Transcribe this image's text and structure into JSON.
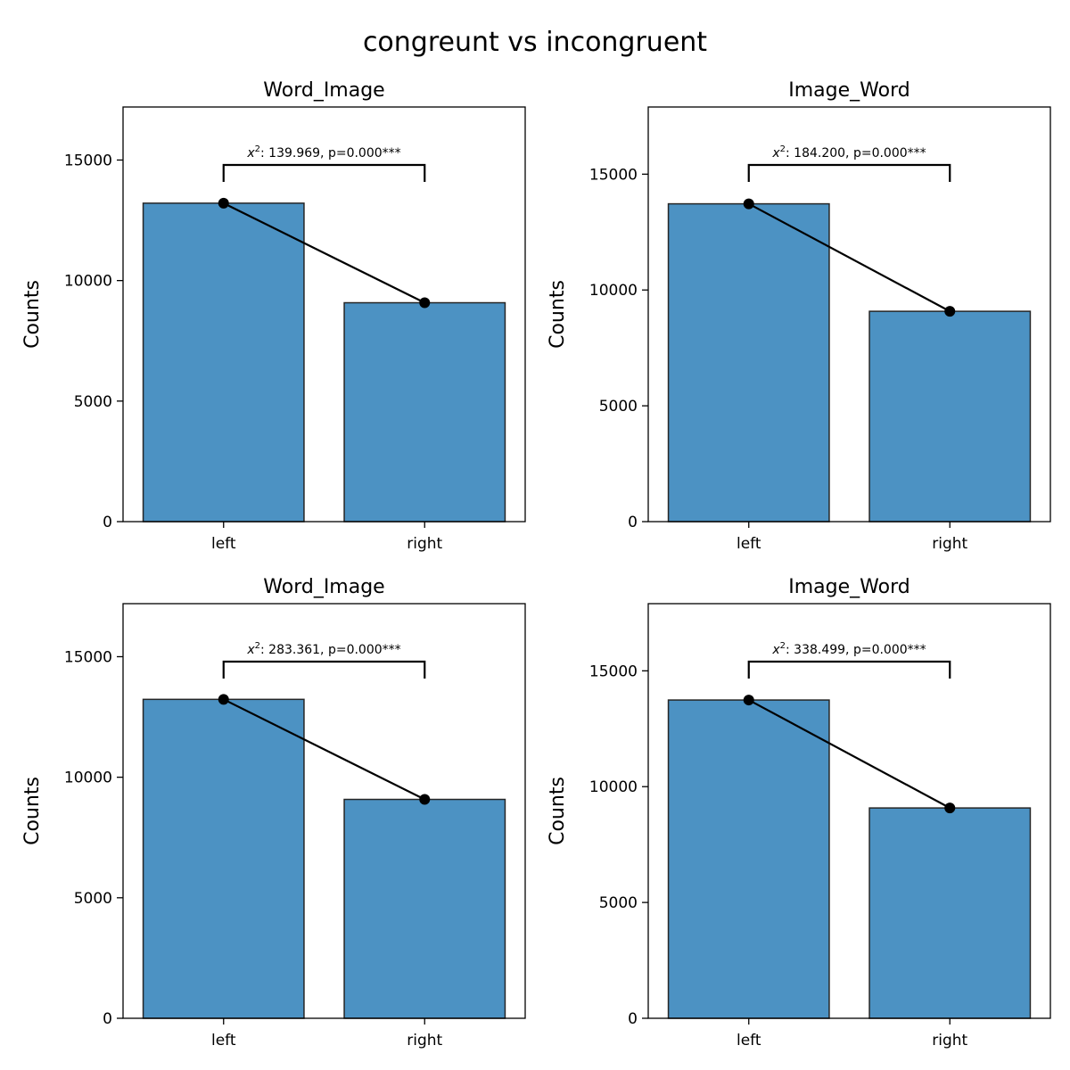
{
  "figure": {
    "title": "congreunt vs incongruent"
  },
  "colors": {
    "bar": "#4c92c3",
    "edge": "#262626",
    "line": "#000000"
  },
  "chart_data": [
    {
      "type": "bar",
      "title": "Word_Image",
      "ylabel": "Counts",
      "categories": [
        "left",
        "right"
      ],
      "values": [
        13210,
        9080
      ],
      "ylim": [
        0,
        17200
      ],
      "yticks": [
        0,
        5000,
        10000,
        15000
      ],
      "annotation_prefix": "x",
      "annotation_sup": "2",
      "annotation_text": ": 139.969, p=0.000***"
    },
    {
      "type": "bar",
      "title": "Image_Word",
      "ylabel": "Counts",
      "categories": [
        "left",
        "right"
      ],
      "values": [
        13720,
        9080
      ],
      "ylim": [
        0,
        17900
      ],
      "yticks": [
        0,
        5000,
        10000,
        15000
      ],
      "annotation_prefix": "x",
      "annotation_sup": "2",
      "annotation_text": ": 184.200, p=0.000***"
    },
    {
      "type": "bar",
      "title": "Word_Image",
      "ylabel": "Counts",
      "categories": [
        "left",
        "right"
      ],
      "values": [
        13230,
        9080
      ],
      "ylim": [
        0,
        17200
      ],
      "yticks": [
        0,
        5000,
        10000,
        15000
      ],
      "annotation_prefix": "x",
      "annotation_sup": "2",
      "annotation_text": ": 283.361, p=0.000***"
    },
    {
      "type": "bar",
      "title": "Image_Word",
      "ylabel": "Counts",
      "categories": [
        "left",
        "right"
      ],
      "values": [
        13740,
        9080
      ],
      "ylim": [
        0,
        17900
      ],
      "yticks": [
        0,
        5000,
        10000,
        15000
      ],
      "annotation_prefix": "x",
      "annotation_sup": "2",
      "annotation_text": ": 338.499, p=0.000***"
    }
  ]
}
